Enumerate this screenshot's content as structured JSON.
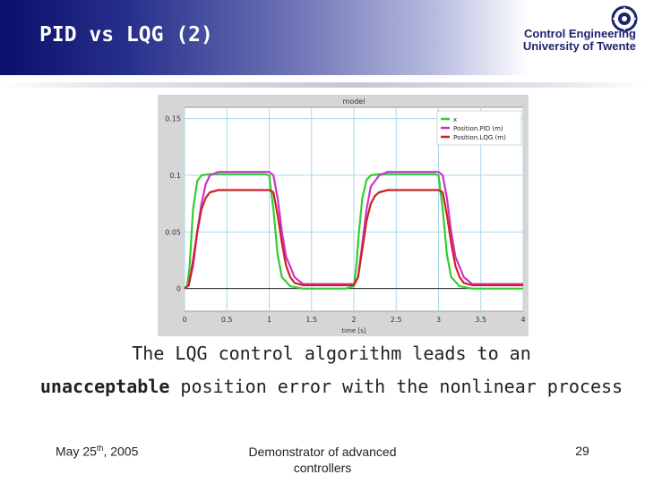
{
  "slide": {
    "title": "PID vs LQG (2)",
    "logo": {
      "line1": "Control Engineering",
      "line2": "University of Twente",
      "icon": "university-seal-icon"
    },
    "caption": {
      "line1": "The LQG control algorithm leads to an",
      "line2_bold": "unacceptable",
      "line2_rest": " position error with the nonlinear process"
    },
    "footer": {
      "date_prefix": "May 25",
      "date_sup": "th",
      "date_suffix": ", 2005",
      "center": "Demonstrator of advanced controllers",
      "page": "29"
    },
    "colors": {
      "header_dark": "#0a0f6b",
      "title_text": "#ffffff"
    }
  },
  "chart_data": {
    "type": "line",
    "title": "model",
    "xlabel": "time [s]",
    "ylabel": "",
    "xlim": [
      0,
      4
    ],
    "ylim": [
      -0.02,
      0.16
    ],
    "xticks": [
      0,
      0.5,
      1,
      1.5,
      2,
      2.5,
      3,
      3.5,
      4
    ],
    "xtick_labels": [
      "0",
      "0.5",
      "1",
      "1.5",
      "2",
      "2.5",
      "3",
      "3.5",
      "4"
    ],
    "yticks": [
      0,
      0.05,
      0.1,
      0.15
    ],
    "ytick_labels": [
      "0",
      "0.05",
      "0.1",
      "0.15"
    ],
    "grid": true,
    "legend_position": "top-right",
    "series": [
      {
        "name": "x",
        "color": "#33cc33",
        "x": [
          0,
          0.03,
          0.06,
          0.1,
          0.15,
          0.2,
          0.3,
          0.95,
          1.0,
          1.05,
          1.1,
          1.15,
          1.25,
          1.4,
          1.5,
          1.9,
          2.0,
          2.03,
          2.06,
          2.1,
          2.15,
          2.2,
          2.3,
          2.95,
          3.0,
          3.05,
          3.1,
          3.15,
          3.25,
          3.4,
          3.5,
          4.0
        ],
        "y": [
          0,
          0.002,
          0.02,
          0.07,
          0.095,
          0.1,
          0.101,
          0.101,
          0.1,
          0.07,
          0.03,
          0.01,
          0.002,
          0,
          0,
          0,
          0.002,
          0.02,
          0.05,
          0.08,
          0.096,
          0.1,
          0.101,
          0.101,
          0.1,
          0.07,
          0.03,
          0.01,
          0.002,
          0,
          0,
          0
        ]
      },
      {
        "name": "Position.PID (m)",
        "color": "#cc33cc",
        "x": [
          0,
          0.05,
          0.1,
          0.15,
          0.2,
          0.25,
          0.3,
          0.4,
          0.5,
          1.0,
          1.05,
          1.1,
          1.15,
          1.2,
          1.3,
          1.4,
          1.5,
          2.0,
          2.05,
          2.1,
          2.15,
          2.2,
          2.3,
          2.4,
          2.5,
          3.0,
          3.05,
          3.1,
          3.15,
          3.2,
          3.3,
          3.4,
          3.5,
          4.0
        ],
        "y": [
          0,
          0.003,
          0.02,
          0.05,
          0.075,
          0.092,
          0.1,
          0.103,
          0.103,
          0.103,
          0.1,
          0.08,
          0.05,
          0.028,
          0.01,
          0.004,
          0.004,
          0.004,
          0.01,
          0.04,
          0.07,
          0.09,
          0.1,
          0.103,
          0.103,
          0.103,
          0.1,
          0.08,
          0.05,
          0.028,
          0.01,
          0.004,
          0.004,
          0.004
        ]
      },
      {
        "name": "Position.LQG (m)",
        "color": "#cc2222",
        "x": [
          0,
          0.05,
          0.1,
          0.15,
          0.2,
          0.25,
          0.3,
          0.4,
          0.5,
          1.0,
          1.05,
          1.1,
          1.15,
          1.2,
          1.25,
          1.3,
          1.4,
          1.5,
          2.0,
          2.05,
          2.1,
          2.15,
          2.2,
          2.25,
          2.3,
          2.4,
          2.5,
          3.0,
          3.05,
          3.1,
          3.15,
          3.2,
          3.25,
          3.3,
          3.4,
          3.5,
          4.0
        ],
        "y": [
          0,
          0.003,
          0.025,
          0.05,
          0.07,
          0.08,
          0.085,
          0.087,
          0.087,
          0.087,
          0.085,
          0.065,
          0.04,
          0.02,
          0.01,
          0.005,
          0.003,
          0.003,
          0.003,
          0.01,
          0.035,
          0.06,
          0.075,
          0.082,
          0.085,
          0.087,
          0.087,
          0.087,
          0.085,
          0.065,
          0.04,
          0.02,
          0.01,
          0.005,
          0.003,
          0.003,
          0.003
        ]
      }
    ]
  }
}
